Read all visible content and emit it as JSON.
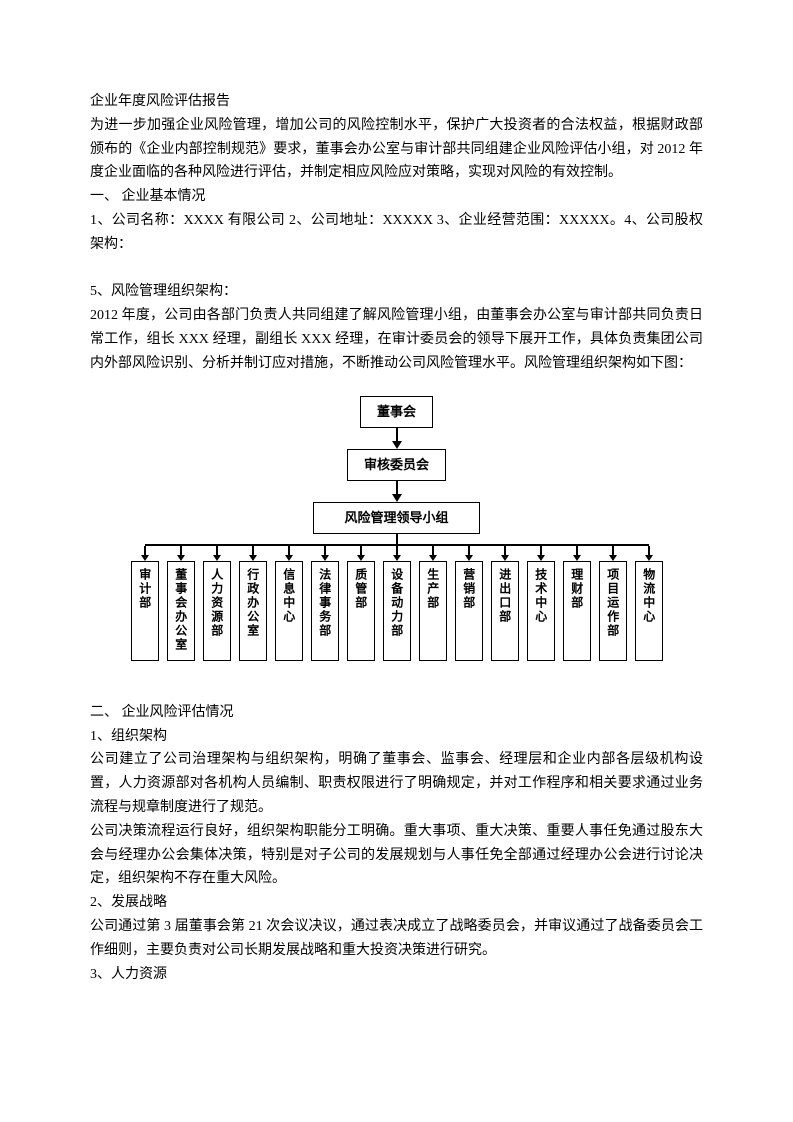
{
  "title": "企业年度风险评估报告",
  "intro": "为进一步加强企业风险管理，增加公司的风险控制水平，保护广大投资者的合法权益，根据财政部颁布的《企业内部控制规范》要求，董事会办公室与审计部共同组建企业风险评估小组，对 2012 年度企业面临的各种风险进行评估，并制定相应风险应对策略，实现对风险的有效控制。",
  "section1_heading": "一、 企业基本情况",
  "section1_line1": "1、公司名称：XXXX 有限公司 2、公司地址：XXXXX 3、企业经营范围：XXXXX。4、公司股权架构：",
  "section1_item5": "5、风险管理组织架构：",
  "section1_item5_body": "2012 年度，公司由各部门负责人共同组建了解风险管理小组，由董事会办公室与审计部共同负责日常工作，组长 XXX 经理，副组长 XXX 经理，在审计委员会的领导下展开工作，具体负责集团公司内外部风险识别、分析并制订应对措施，不断推动公司风险管理水平。风险管理组织架构如下图：",
  "chart": {
    "level1": "董事会",
    "level2": "审核委员会",
    "level3": "风险管理领导小组",
    "departments": [
      "审计部",
      "董事会办公室",
      "人力资源部",
      "行政办公室",
      "信息中心",
      "法律事务部",
      "质管部",
      "设备动力部",
      "生产部",
      "营销部",
      "进出口部",
      "技术中心",
      "理财部",
      "项目运作部",
      "物流中心"
    ]
  },
  "section2_heading": "二、 企业风险评估情况",
  "section2_item1_title": " 1、组织架构",
  "section2_item1_p1": "公司建立了公司治理架构与组织架构，明确了董事会、监事会、经理层和企业内部各层级机构设置，人力资源部对各机构人员编制、职责权限进行了明确规定，并对工作程序和相关要求通过业务流程与规章制度进行了规范。",
  "section2_item1_p2": "公司决策流程运行良好，组织架构职能分工明确。重大事项、重大决策、重要人事任免通过股东大会与经理办公会集体决策，特别是对子公司的发展规划与人事任免全部通过经理办公会进行讨论决定，组织架构不存在重大风险。",
  "section2_item2_title": "2、发展战略",
  "section2_item2_p1": "公司通过第 3 届董事会第 21 次会议决议，通过表决成立了战略委员会，并审议通过了战备委员会工作细则，主要负责对公司长期发展战略和重大投资决策进行研究。",
  "section2_item3_title": "3、人力资源"
}
